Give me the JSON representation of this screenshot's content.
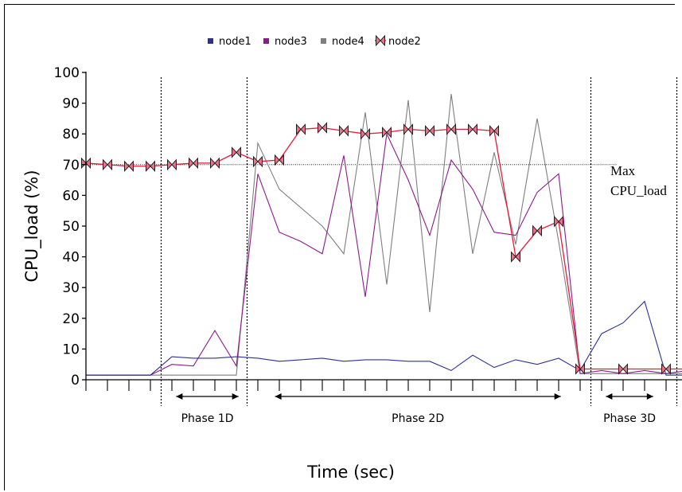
{
  "chart_data": {
    "type": "line",
    "title": "",
    "xlabel": "Time (sec)",
    "ylabel": "CPU_load (%)",
    "ylim": [
      0,
      100
    ],
    "yticks": [
      0,
      10,
      20,
      30,
      40,
      50,
      60,
      70,
      80,
      90,
      100
    ],
    "x": [
      1,
      2,
      3,
      4,
      5,
      6,
      7,
      8,
      9,
      10,
      11,
      12,
      13,
      14,
      15,
      16,
      17,
      18,
      19,
      20,
      21,
      22,
      23,
      24,
      25,
      26,
      27,
      28,
      29,
      30,
      31,
      32,
      33
    ],
    "grid": false,
    "legend_position": "top",
    "series": [
      {
        "name": "node1",
        "color": "#2e3192",
        "marker": "square",
        "values": [
          1.5,
          1.5,
          1.5,
          1.5,
          7.5,
          7,
          7,
          7.5,
          7,
          6,
          6.5,
          7,
          6,
          6.5,
          6.5,
          6,
          6,
          3,
          8,
          4,
          6.5,
          5,
          7,
          3,
          15,
          18.5,
          25.5,
          1.5,
          1.5,
          1.5,
          1.5,
          1.5,
          1.5
        ]
      },
      {
        "name": "node3",
        "color": "#8b1a8b",
        "marker": "square",
        "values": [
          1.5,
          1.5,
          1.5,
          1.5,
          5,
          4.5,
          16,
          4.5,
          67,
          48,
          45,
          41,
          73,
          27,
          80,
          65,
          47,
          71.5,
          62,
          48,
          47,
          61,
          67,
          2,
          3,
          2,
          3,
          2,
          3,
          2,
          3,
          2,
          3
        ]
      },
      {
        "name": "node4",
        "color": "#7f7f7f",
        "marker": "square",
        "values": [
          1.5,
          1.5,
          1.5,
          1.5,
          1.5,
          1.5,
          1.5,
          1.5,
          77,
          62,
          56,
          50,
          41,
          87,
          31,
          91,
          22,
          93,
          41,
          74,
          44,
          85,
          45,
          2,
          2,
          2,
          2,
          2,
          2,
          2,
          2,
          2,
          2
        ]
      },
      {
        "name": "node2",
        "color": "#e8193c",
        "marker": "bowtie",
        "values": [
          70.5,
          70,
          69.5,
          69.5,
          70,
          70.5,
          70.5,
          74,
          71,
          71.5,
          81.5,
          82,
          81,
          80,
          80.5,
          81.5,
          81,
          81.5,
          81.5,
          81,
          40,
          48.5,
          51.5,
          3.5,
          3.5,
          3.5,
          3.5,
          3.5,
          3.5,
          3.5,
          3.5,
          3.5,
          3.5
        ]
      }
    ],
    "node2_marker_x": [
      1,
      2,
      3,
      4,
      5,
      6,
      7,
      8,
      9,
      10,
      11,
      12,
      13,
      14,
      15,
      16,
      17,
      18,
      19,
      20,
      21,
      22,
      23,
      24,
      26,
      28,
      30
    ],
    "reference_line": {
      "y": 70,
      "label_line1": "Max",
      "label_line2": "CPU_load"
    },
    "phase_boundaries_x": [
      4.5,
      8.5,
      24.5,
      28.5
    ],
    "phases": [
      {
        "label": "Phase 1D",
        "x_start": 5.2,
        "x_end": 8.1
      },
      {
        "label": "Phase 2D",
        "x_start": 9.8,
        "x_end": 23.1
      },
      {
        "label": "Phase 3D",
        "x_start": 25.2,
        "x_end": 27.4
      }
    ]
  }
}
